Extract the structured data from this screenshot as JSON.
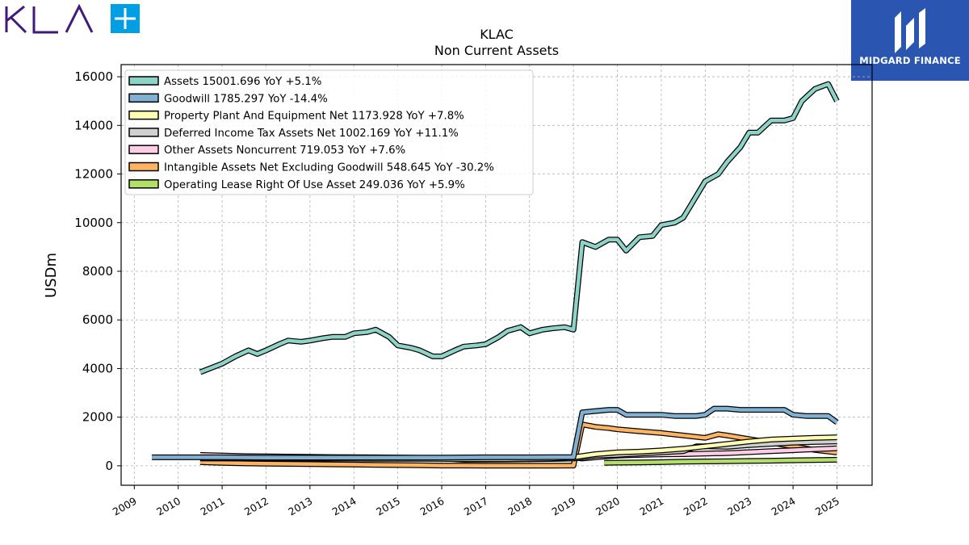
{
  "brand": {
    "left_logo_text": "KLA",
    "right_logo_text": "MIDGARD FINANCE",
    "right_logo_color": "#2a56b2",
    "left_logo_color": "#3f1a7a",
    "left_logo_accent": "#009fe3"
  },
  "chart_data": {
    "type": "line",
    "title": "KLAC",
    "subtitle": "Non Current  Assets",
    "ylabel": "USDm",
    "xlabel": "",
    "xlim": [
      2008.7,
      2025.8
    ],
    "ylim": [
      -800,
      16500
    ],
    "yticks": [
      0,
      2000,
      4000,
      6000,
      8000,
      10000,
      12000,
      14000,
      16000
    ],
    "xticks": [
      "2009",
      "2010",
      "2011",
      "2012",
      "2013",
      "2014",
      "2015",
      "2016",
      "2017",
      "2018",
      "2019",
      "2020",
      "2021",
      "2022",
      "2023",
      "2024",
      "2025"
    ],
    "grid": true,
    "legend_position": "top-left",
    "series": [
      {
        "name": "Assets",
        "legend": "Assets  15001.696 YoY +5.1%",
        "color": "#8dd3c7",
        "x": [
          2010.5,
          2011.0,
          2011.3,
          2011.6,
          2011.8,
          2012.0,
          2012.3,
          2012.5,
          2012.8,
          2013.0,
          2013.3,
          2013.5,
          2013.8,
          2014.0,
          2014.3,
          2014.5,
          2014.8,
          2015.0,
          2015.3,
          2015.5,
          2015.8,
          2016.0,
          2016.3,
          2016.5,
          2016.8,
          2017.0,
          2017.3,
          2017.5,
          2017.8,
          2018.0,
          2018.3,
          2018.5,
          2018.8,
          2019.0,
          2019.2,
          2019.5,
          2019.8,
          2020.0,
          2020.2,
          2020.5,
          2020.8,
          2021.0,
          2021.3,
          2021.5,
          2021.8,
          2022.0,
          2022.3,
          2022.5,
          2022.8,
          2023.0,
          2023.2,
          2023.5,
          2023.8,
          2024.0,
          2024.2,
          2024.5,
          2024.8,
          2025.0
        ],
        "y": [
          3850,
          4200,
          4500,
          4750,
          4600,
          4750,
          5000,
          5150,
          5100,
          5150,
          5250,
          5300,
          5300,
          5450,
          5500,
          5600,
          5300,
          4950,
          4850,
          4750,
          4500,
          4500,
          4750,
          4900,
          4950,
          5000,
          5300,
          5550,
          5700,
          5450,
          5600,
          5650,
          5700,
          5600,
          9200,
          9000,
          9300,
          9300,
          8850,
          9400,
          9450,
          9900,
          10000,
          10200,
          11100,
          11700,
          12000,
          12500,
          13100,
          13700,
          13700,
          14200,
          14200,
          14300,
          15000,
          15500,
          15700,
          15000
        ]
      },
      {
        "name": "Goodwill",
        "legend": "Goodwill  1785.297 YoY -14.4%",
        "color": "#80b1d3",
        "x": [
          2009.4,
          2010.5,
          2011.0,
          2012.0,
          2013.0,
          2014.0,
          2015.0,
          2016.0,
          2017.0,
          2018.0,
          2019.0,
          2019.2,
          2019.5,
          2019.8,
          2020.0,
          2020.2,
          2020.5,
          2020.8,
          2021.0,
          2021.3,
          2021.5,
          2021.8,
          2022.0,
          2022.2,
          2022.5,
          2022.8,
          2023.0,
          2023.3,
          2023.6,
          2023.8,
          2024.0,
          2024.3,
          2024.5,
          2024.8,
          2025.0
        ],
        "y": [
          350,
          350,
          350,
          340,
          340,
          340,
          340,
          340,
          350,
          350,
          360,
          2200,
          2250,
          2300,
          2300,
          2100,
          2100,
          2100,
          2100,
          2050,
          2050,
          2050,
          2100,
          2350,
          2350,
          2300,
          2300,
          2300,
          2300,
          2300,
          2100,
          2050,
          2050,
          2050,
          1785
        ]
      },
      {
        "name": "Property Plant And Equipment Net",
        "legend": "Property Plant And Equipment Net  1173.928 YoY +7.8%",
        "color": "#ffffb3",
        "x": [
          2010.5,
          2011.5,
          2012.5,
          2013.5,
          2014.5,
          2015.5,
          2016.5,
          2017.5,
          2018.5,
          2019.0,
          2019.5,
          2020.0,
          2020.5,
          2021.0,
          2021.5,
          2022.0,
          2022.5,
          2023.0,
          2023.5,
          2024.0,
          2024.5,
          2025.0
        ],
        "y": [
          320,
          310,
          300,
          300,
          290,
          290,
          280,
          280,
          300,
          350,
          480,
          550,
          580,
          630,
          700,
          800,
          900,
          1000,
          1080,
          1120,
          1150,
          1174
        ]
      },
      {
        "name": "Deferred Income Tax Assets Net",
        "legend": "Deferred Income Tax Assets Net  1002.169 YoY +11.1%",
        "color": "#d0d0d0",
        "x": [
          2010.5,
          2011.5,
          2012.5,
          2013.5,
          2014.5,
          2015.5,
          2016.0,
          2016.5,
          2017.5,
          2018.5,
          2019.0,
          2019.5,
          2020.0,
          2020.5,
          2021.0,
          2021.5,
          2021.8,
          2022.0,
          2022.5,
          2023.0,
          2023.5,
          2024.0,
          2024.5,
          2025.0
        ],
        "y": [
          300,
          300,
          300,
          300,
          300,
          300,
          300,
          250,
          260,
          280,
          300,
          420,
          450,
          500,
          550,
          600,
          800,
          800,
          780,
          850,
          900,
          950,
          980,
          1002
        ]
      },
      {
        "name": "Other Assets Noncurrent",
        "legend": "Other Assets Noncurrent  719.053 YoY +7.6%",
        "color": "#fccde5",
        "x": [
          2010.5,
          2011.5,
          2012.5,
          2013.5,
          2014.5,
          2015.5,
          2016.5,
          2017.5,
          2018.5,
          2019.0,
          2019.2,
          2019.5,
          2020.0,
          2020.5,
          2021.0,
          2021.5,
          2022.0,
          2022.5,
          2023.0,
          2023.5,
          2024.0,
          2024.5,
          2025.0
        ],
        "y": [
          450,
          400,
          380,
          360,
          350,
          330,
          320,
          320,
          320,
          330,
          300,
          350,
          420,
          450,
          470,
          480,
          500,
          520,
          560,
          600,
          640,
          680,
          719
        ]
      },
      {
        "name": "Intangible Assets Net Excluding Goodwill",
        "legend": "Intangible Assets Net Excluding Goodwill  548.645 YoY -30.2%",
        "color": "#fdb462",
        "x": [
          2010.5,
          2011.0,
          2011.5,
          2012.0,
          2012.5,
          2013.0,
          2013.5,
          2014.0,
          2014.5,
          2015.0,
          2015.5,
          2016.0,
          2016.5,
          2017.0,
          2017.5,
          2018.0,
          2018.5,
          2019.0,
          2019.2,
          2019.5,
          2019.8,
          2020.0,
          2020.5,
          2021.0,
          2021.5,
          2022.0,
          2022.3,
          2022.5,
          2023.0,
          2023.5,
          2024.0,
          2024.5,
          2025.0
        ],
        "y": [
          150,
          120,
          100,
          90,
          80,
          70,
          60,
          50,
          40,
          30,
          20,
          10,
          10,
          5,
          5,
          5,
          5,
          10,
          1700,
          1600,
          1550,
          1500,
          1420,
          1350,
          1250,
          1150,
          1300,
          1250,
          1100,
          950,
          800,
          650,
          549
        ]
      },
      {
        "name": "Operating Lease Right Of Use Asset",
        "legend": "Operating Lease Right Of Use Asset  249.036 YoY +5.9%",
        "color": "#b3de69",
        "x": [
          2019.7,
          2020.0,
          2020.5,
          2021.0,
          2021.5,
          2022.0,
          2022.5,
          2023.0,
          2023.5,
          2024.0,
          2024.5,
          2025.0
        ],
        "y": [
          120,
          130,
          140,
          150,
          170,
          180,
          190,
          200,
          210,
          225,
          235,
          249
        ]
      }
    ]
  }
}
